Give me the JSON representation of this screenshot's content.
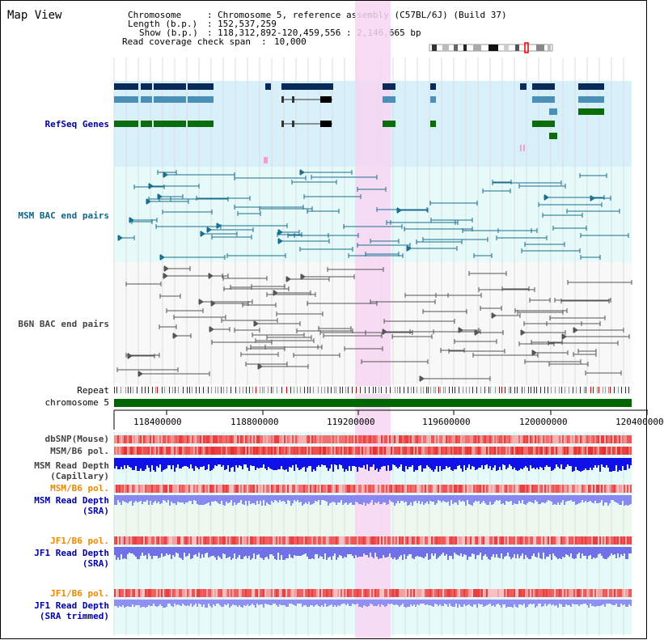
{
  "title": "Map View",
  "header": {
    "chromosome_key": "Chromosome",
    "chromosome_value": "Chromosome 5, reference assembly (C57BL/6J) (Build 37)",
    "length_key": "Length (b.p.)",
    "length_value": "152,537,259",
    "show_key": "Show (b.p.)",
    "show_value": "118,312,892-120,459,556 : 2,146,665 bp",
    "coverage_key": "Read coverage check span",
    "coverage_value": "10,000"
  },
  "tracks": {
    "refseq": "RefSeq Genes",
    "msm_bac": "MSM BAC end pairs",
    "b6n_bac": "B6N BAC end pairs",
    "repeat": "Repeat",
    "chromosome": "chromosome 5",
    "dbsnp": "dbSNP(Mouse)",
    "msm_b6_pol": "MSM/B6 pol.",
    "msm_depth_cap_1": "MSM Read Depth",
    "msm_depth_cap_2": "(Capillary)",
    "msm_b6_pol_2": "MSM/B6 pol.",
    "msm_depth_sra_1": "MSM Read Depth",
    "msm_depth_sra_2": "(SRA)",
    "jf1_b6_pol": "JF1/B6 pol.",
    "jf1_depth_sra_1": "JF1 Read Depth",
    "jf1_depth_sra_2": "(SRA)",
    "jf1_b6_pol_2": "JF1/B6 pol.",
    "jf1_depth_trim_1": "JF1 Read Depth",
    "jf1_depth_trim_2": "(SRA trimmed)"
  },
  "axis": {
    "ticks": [
      "118400000",
      "118800000",
      "119200000",
      "119600000",
      "120000000",
      "120400000"
    ]
  },
  "colors": {
    "refseq_bg": "#d8f0fa",
    "msm_bg": "#e6fafa",
    "b6n_bg": "#f8f8f8",
    "highlight": "#f7d6f2",
    "gene_navy": "#0a2a5a",
    "gene_steel": "#4a8fb8",
    "gene_green": "#0c6c0c",
    "msm_pair": "#1a6e8e",
    "b6n_pair": "#555555",
    "chromosome_bar": "#006600",
    "label_blue": "#0000aa",
    "label_teal": "#116688",
    "label_gray": "#444444",
    "label_orange": "#ee8800"
  }
}
